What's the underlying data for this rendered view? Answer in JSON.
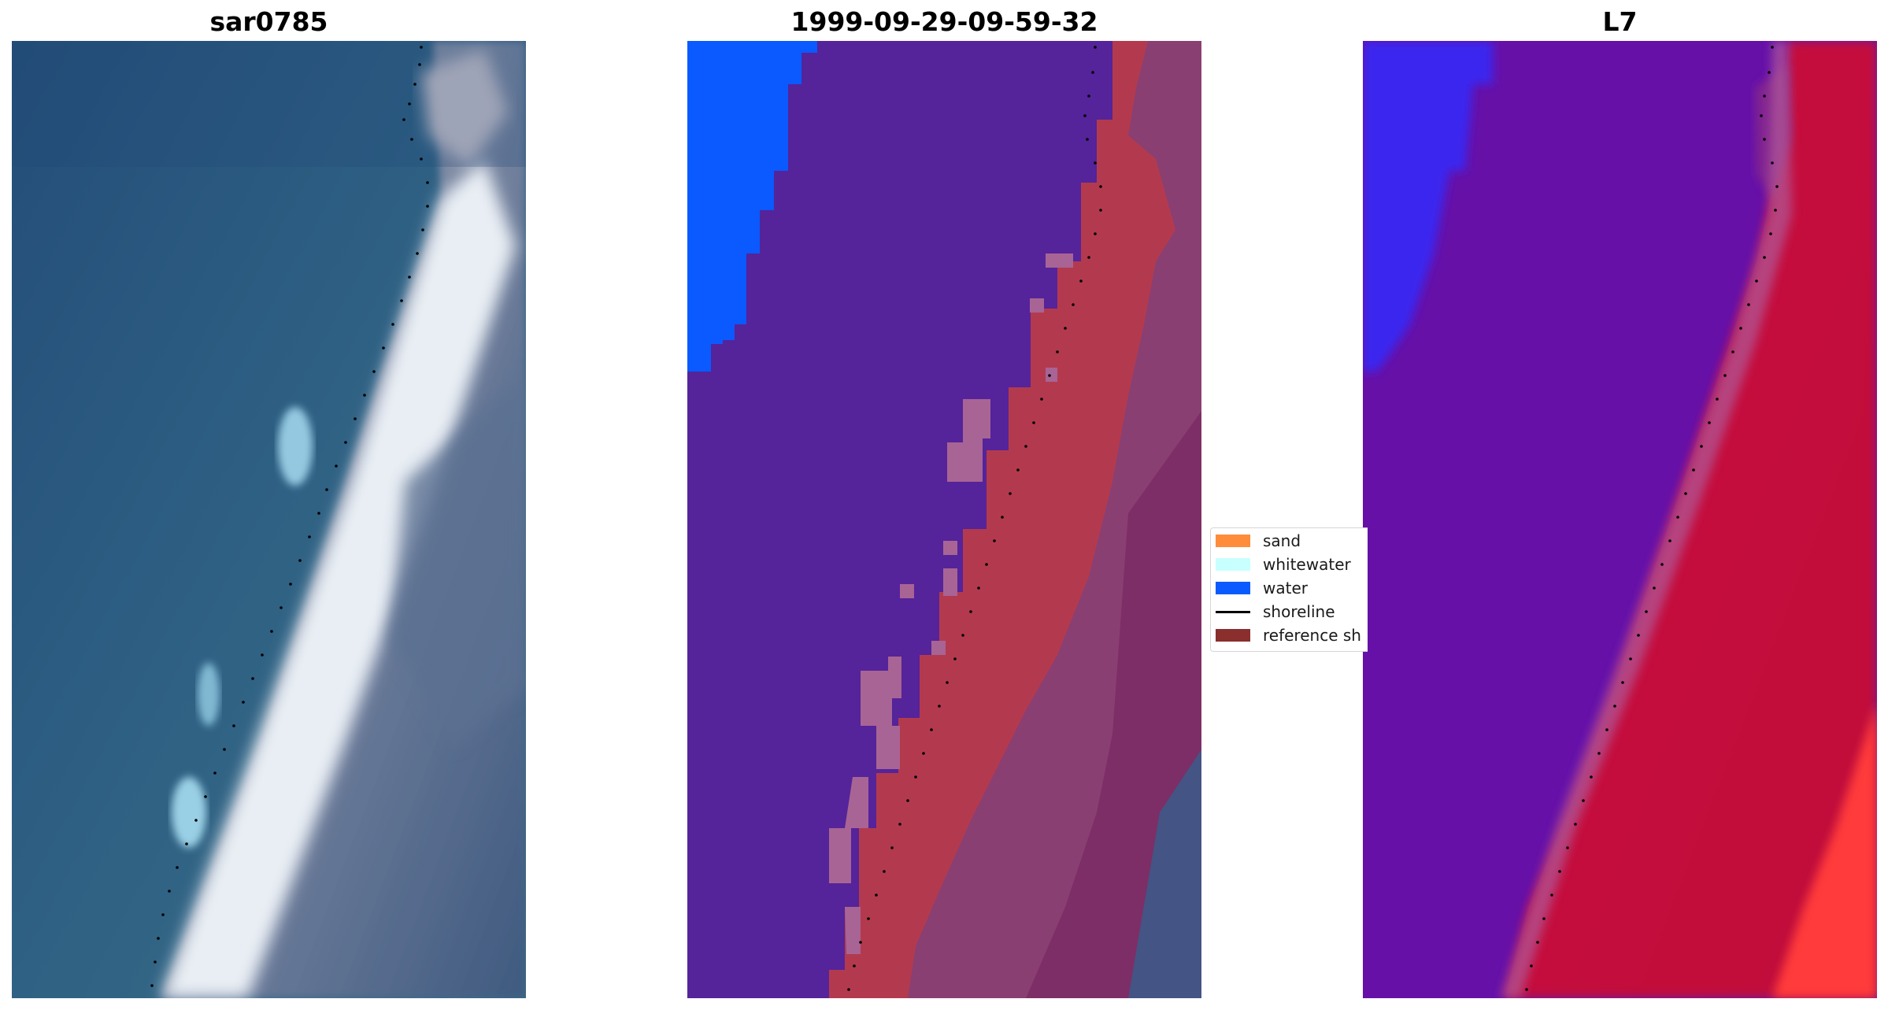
{
  "panels": [
    {
      "title": "sar0785"
    },
    {
      "title": "1999-09-29-09-59-32"
    },
    {
      "title": "L7"
    }
  ],
  "legend": {
    "items": [
      {
        "label": "sand",
        "kind": "patch",
        "color": "#ff8c3a"
      },
      {
        "label": "whitewater",
        "kind": "patch",
        "color": "#c8ffff"
      },
      {
        "label": "water",
        "kind": "patch",
        "color": "#0a5aff"
      },
      {
        "label": "shoreline",
        "kind": "line",
        "color": "#000000"
      },
      {
        "label": "reference sh",
        "kind": "patch",
        "color": "#8b2e2e"
      }
    ]
  },
  "colors": {
    "rgb_water": "#2f5f82",
    "rgb_beach": "#e6ecf2",
    "class_water_bg": "#55239a",
    "class_sand": "#b33a4e",
    "class_water": "#0a5aff",
    "class_land": "#8a3f72",
    "mndwi_water": "#6610a8",
    "mndwi_land": "#c80a3a",
    "shoreline_dots": "#000000"
  }
}
